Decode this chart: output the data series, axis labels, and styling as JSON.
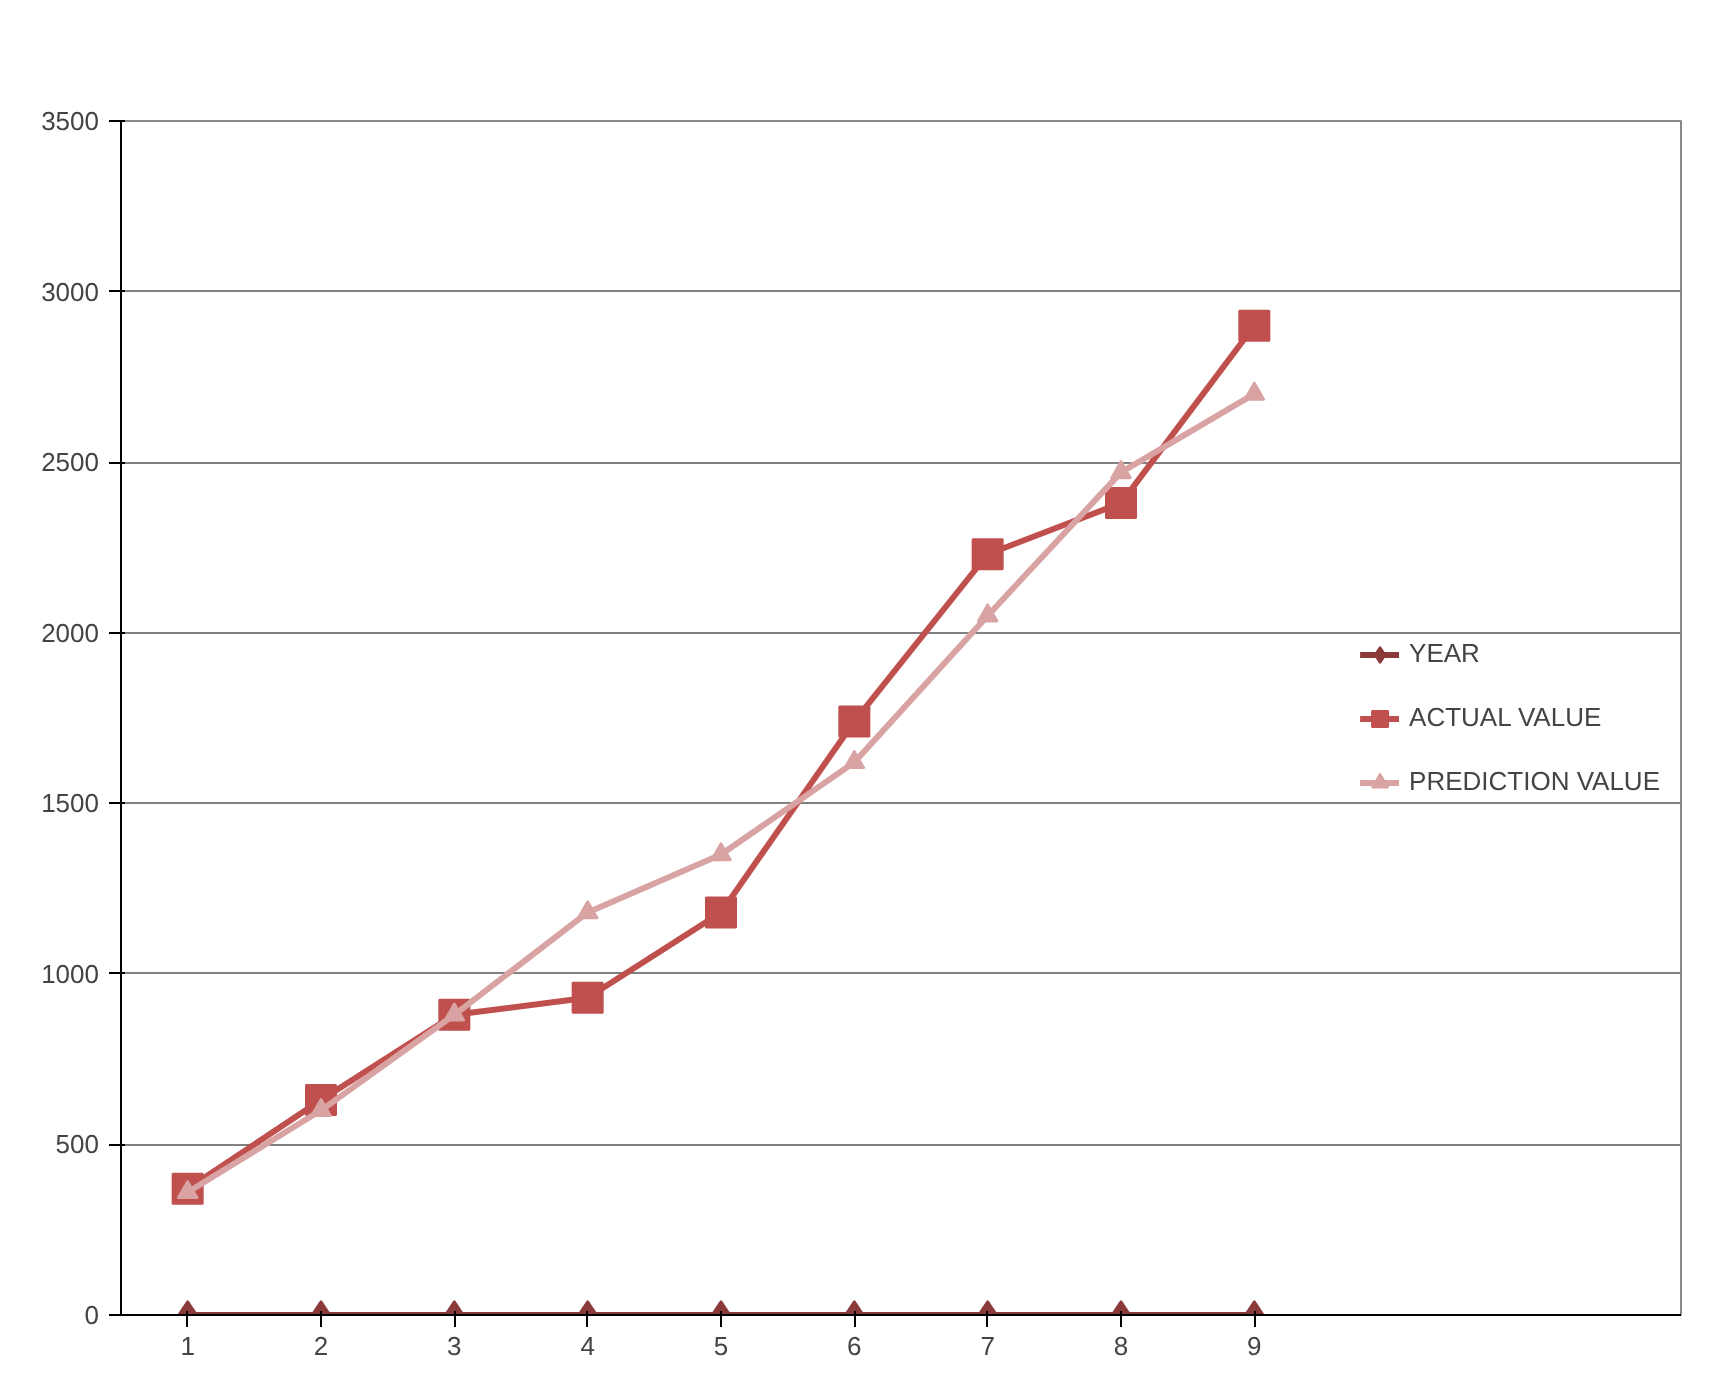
{
  "chart_data": {
    "type": "line",
    "categories": [
      "1",
      "2",
      "3",
      "4",
      "5",
      "6",
      "7",
      "8",
      "9"
    ],
    "series": [
      {
        "name": "YEAR",
        "color": "#8b3a3a",
        "marker": "diamond",
        "values": [
          0,
          0,
          0,
          0,
          0,
          0,
          0,
          0,
          0
        ]
      },
      {
        "name": "ACTUAL VALUE",
        "color": "#c0504d",
        "marker": "square",
        "values": [
          370,
          630,
          880,
          930,
          1180,
          1740,
          2230,
          2380,
          2900
        ]
      },
      {
        "name": "PREDICTION VALUE",
        "color": "#d9a3a3",
        "marker": "triangle",
        "values": [
          360,
          600,
          880,
          1180,
          1350,
          1620,
          2050,
          2470,
          2700
        ]
      }
    ],
    "ylim": [
      0,
      3500
    ],
    "yticks": [
      0,
      500,
      1000,
      1500,
      2000,
      2500,
      3000,
      3500
    ],
    "grid": "y",
    "legend": "right"
  }
}
